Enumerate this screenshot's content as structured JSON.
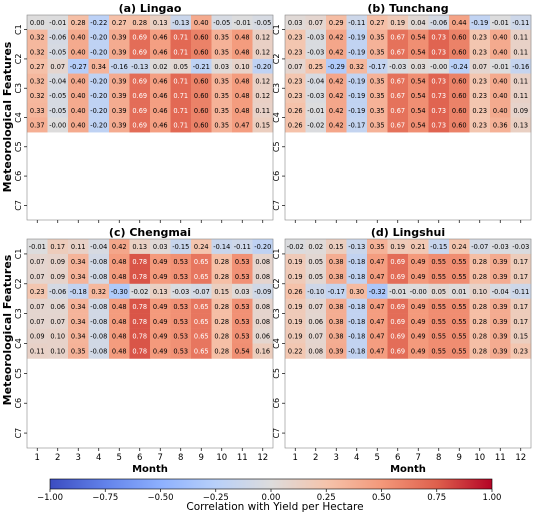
{
  "figure": {
    "ylabel": "Meteorological Features",
    "colorbar": {
      "label": "Correlation with Yield per Hectare",
      "ticks": [
        "−1.00",
        "−0.75",
        "−0.50",
        "−0.25",
        "0.00",
        "0.25",
        "0.50",
        "0.75",
        "1.00"
      ],
      "range": [
        -1,
        1
      ],
      "colormap": "coolwarm",
      "colors": {
        "neg": "#3b4cc0",
        "mid": "#dddddd",
        "pos": "#b40426"
      }
    }
  },
  "chart_data": [
    {
      "type": "heatmap",
      "title": "(a) Lingao",
      "xlabel": "",
      "ylabel": "Meteorological Features",
      "x": [
        "1",
        "2",
        "3",
        "4",
        "5",
        "6",
        "7",
        "8",
        "9",
        "10",
        "11",
        "12"
      ],
      "y": [
        "C1",
        "C2",
        "C3",
        "C4",
        "C5",
        "C6",
        "C7"
      ],
      "values": [
        [
          [
            0.0,
            -0.01,
            0.28,
            -0.22,
            0.27,
            0.28,
            0.13,
            -0.13,
            0.4,
            -0.05,
            -0.01,
            -0.05
          ],
          [
            0.32,
            -0.06,
            0.4,
            -0.2,
            0.39,
            0.69,
            0.46,
            0.71,
            0.6,
            0.35,
            0.48,
            0.12
          ]
        ],
        [
          [
            0.32,
            -0.05,
            0.4,
            -0.2,
            0.39,
            0.69,
            0.46,
            0.71,
            0.6,
            0.35,
            0.48,
            0.12
          ],
          [
            0.27,
            0.07,
            -0.27,
            0.34,
            -0.16,
            -0.13,
            0.02,
            0.05,
            -0.21,
            0.03,
            0.1,
            -0.2
          ]
        ],
        [
          [
            0.32,
            -0.04,
            0.4,
            -0.2,
            0.39,
            0.69,
            0.46,
            0.71,
            0.6,
            0.35,
            0.48,
            0.12
          ],
          [
            0.32,
            -0.05,
            0.4,
            -0.2,
            0.39,
            0.69,
            0.46,
            0.71,
            0.6,
            0.35,
            0.48,
            0.12
          ]
        ],
        [
          [
            0.33,
            -0.05,
            0.4,
            -0.2,
            0.39,
            0.69,
            0.46,
            0.71,
            0.6,
            0.35,
            0.48,
            0.11
          ],
          [
            0.37,
            -0.0,
            0.4,
            -0.2,
            0.39,
            0.69,
            0.46,
            0.71,
            0.6,
            0.35,
            0.47,
            0.15
          ]
        ],
        [],
        [],
        []
      ]
    },
    {
      "type": "heatmap",
      "title": "(b) Tunchang",
      "xlabel": "",
      "ylabel": "",
      "x": [
        "1",
        "2",
        "3",
        "4",
        "5",
        "6",
        "7",
        "8",
        "9",
        "10",
        "11",
        "12"
      ],
      "y": [
        "C1",
        "C2",
        "C3",
        "C4",
        "C5",
        "C6",
        "C7"
      ],
      "values": [
        [
          [
            0.03,
            0.07,
            0.29,
            -0.11,
            0.27,
            0.19,
            0.04,
            -0.06,
            0.44,
            -0.19,
            -0.01,
            -0.11
          ],
          [
            0.23,
            -0.03,
            0.42,
            -0.19,
            0.35,
            0.67,
            0.54,
            0.73,
            0.6,
            0.23,
            0.4,
            0.11
          ]
        ],
        [
          [
            0.23,
            -0.03,
            0.42,
            -0.19,
            0.35,
            0.67,
            0.54,
            0.73,
            0.6,
            0.23,
            0.4,
            0.11
          ],
          [
            0.07,
            0.25,
            -0.29,
            0.32,
            -0.17,
            -0.03,
            0.03,
            -0.0,
            -0.24,
            0.07,
            -0.01,
            -0.16
          ]
        ],
        [
          [
            0.23,
            -0.04,
            0.42,
            -0.19,
            0.35,
            0.67,
            0.54,
            0.73,
            0.6,
            0.23,
            0.4,
            0.11
          ],
          [
            0.23,
            -0.03,
            0.42,
            -0.19,
            0.35,
            0.67,
            0.54,
            0.73,
            0.6,
            0.23,
            0.4,
            0.11
          ]
        ],
        [
          [
            0.26,
            -0.01,
            0.42,
            -0.19,
            0.35,
            0.67,
            0.54,
            0.73,
            0.6,
            0.23,
            0.4,
            0.09
          ],
          [
            0.26,
            -0.02,
            0.42,
            -0.17,
            0.35,
            0.67,
            0.54,
            0.73,
            0.6,
            0.23,
            0.36,
            0.13
          ]
        ],
        [],
        [],
        []
      ]
    },
    {
      "type": "heatmap",
      "title": "(c) Chengmai",
      "xlabel": "Month",
      "ylabel": "Meteorological Features",
      "x": [
        "1",
        "2",
        "3",
        "4",
        "5",
        "6",
        "7",
        "8",
        "9",
        "10",
        "11",
        "12"
      ],
      "y": [
        "C1",
        "C2",
        "C3",
        "C4",
        "C5",
        "C6",
        "C7"
      ],
      "values": [
        [
          [
            -0.01,
            0.17,
            0.11,
            -0.04,
            0.42,
            0.13,
            0.03,
            -0.15,
            0.24,
            -0.14,
            -0.11,
            -0.2
          ],
          [
            0.07,
            0.09,
            0.34,
            -0.08,
            0.48,
            0.78,
            0.49,
            0.53,
            0.65,
            0.28,
            0.53,
            0.08
          ]
        ],
        [
          [
            0.07,
            0.09,
            0.34,
            -0.08,
            0.48,
            0.78,
            0.49,
            0.53,
            0.65,
            0.28,
            0.53,
            0.08
          ],
          [
            0.23,
            -0.06,
            -0.18,
            0.32,
            -0.3,
            -0.02,
            0.13,
            -0.03,
            -0.07,
            0.15,
            0.03,
            -0.09
          ]
        ],
        [
          [
            0.07,
            0.06,
            0.34,
            -0.08,
            0.48,
            0.78,
            0.49,
            0.53,
            0.65,
            0.28,
            0.53,
            0.08
          ],
          [
            0.07,
            0.07,
            0.34,
            -0.08,
            0.48,
            0.78,
            0.49,
            0.53,
            0.65,
            0.28,
            0.53,
            0.08
          ]
        ],
        [
          [
            0.09,
            0.1,
            0.34,
            -0.08,
            0.48,
            0.78,
            0.49,
            0.53,
            0.65,
            0.28,
            0.53,
            0.06
          ],
          [
            0.11,
            0.1,
            0.35,
            -0.08,
            0.48,
            0.78,
            0.49,
            0.53,
            0.65,
            0.28,
            0.54,
            0.16
          ]
        ],
        [],
        [],
        []
      ]
    },
    {
      "type": "heatmap",
      "title": "(d) Lingshui",
      "xlabel": "Month",
      "ylabel": "",
      "x": [
        "1",
        "2",
        "3",
        "4",
        "5",
        "6",
        "7",
        "8",
        "9",
        "10",
        "11",
        "12"
      ],
      "y": [
        "C1",
        "C2",
        "C3",
        "C4",
        "C5",
        "C6",
        "C7"
      ],
      "values": [
        [
          [
            -0.02,
            0.02,
            0.15,
            -0.13,
            0.35,
            0.19,
            0.21,
            -0.15,
            0.24,
            -0.07,
            -0.03,
            -0.03
          ],
          [
            0.19,
            0.05,
            0.38,
            -0.18,
            0.47,
            0.69,
            0.49,
            0.55,
            0.55,
            0.28,
            0.39,
            0.17
          ]
        ],
        [
          [
            0.19,
            0.05,
            0.38,
            -0.18,
            0.47,
            0.69,
            0.49,
            0.55,
            0.55,
            0.28,
            0.39,
            0.17
          ],
          [
            0.26,
            -0.1,
            -0.17,
            0.3,
            -0.32,
            -0.01,
            -0.0,
            0.05,
            0.01,
            0.1,
            -0.04,
            -0.11
          ]
        ],
        [
          [
            0.19,
            0.07,
            0.38,
            -0.18,
            0.47,
            0.69,
            0.49,
            0.55,
            0.55,
            0.28,
            0.39,
            0.17
          ],
          [
            0.19,
            0.06,
            0.38,
            -0.18,
            0.47,
            0.69,
            0.49,
            0.55,
            0.55,
            0.28,
            0.39,
            0.17
          ]
        ],
        [
          [
            0.19,
            0.07,
            0.38,
            -0.18,
            0.47,
            0.69,
            0.49,
            0.55,
            0.55,
            0.28,
            0.39,
            0.15
          ],
          [
            0.22,
            0.08,
            0.39,
            -0.18,
            0.47,
            0.69,
            0.49,
            0.55,
            0.55,
            0.28,
            0.39,
            0.23
          ]
        ],
        [],
        [],
        []
      ]
    }
  ]
}
